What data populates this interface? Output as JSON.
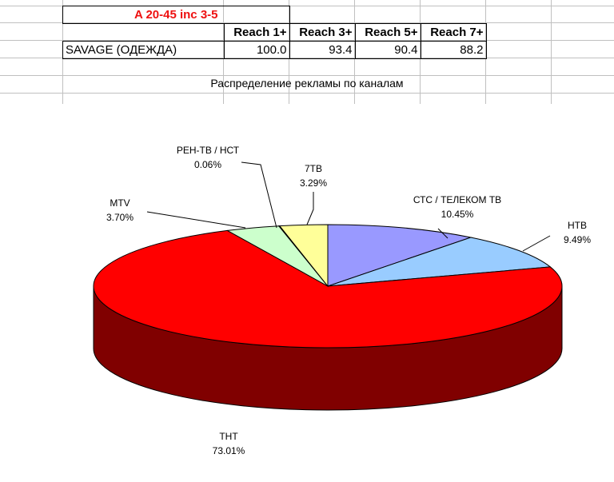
{
  "sheet": {
    "title": "A 20-45 inc 3-5",
    "headers": [
      "Reach 1+",
      "Reach 3+",
      "Reach 5+",
      "Reach 7+"
    ],
    "row_label": "SAVAGE (ОДЕЖДА)",
    "row_values": [
      "100.0",
      "93.4",
      "90.4",
      "88.2"
    ]
  },
  "chart_data": {
    "type": "pie",
    "title": "Распределение рекламы по каналам",
    "three_d": true,
    "slices": [
      {
        "name": "СТС / ТЕЛЕКОМ ТВ",
        "value": 10.45,
        "label": "10.45%",
        "color": "#9999ff"
      },
      {
        "name": "НТВ",
        "value": 9.49,
        "label": "9.49%",
        "color": "#99ccff"
      },
      {
        "name": "ТНТ",
        "value": 73.01,
        "label": "73.01%",
        "color": "#ff0000"
      },
      {
        "name": "MTV",
        "value": 3.7,
        "label": "3.70%",
        "color": "#ccffcc"
      },
      {
        "name": "РЕН-ТВ / НСТ",
        "value": 0.06,
        "label": "0.06%",
        "color": "#ffffcc"
      },
      {
        "name": "7ТВ",
        "value": 3.29,
        "label": "3.29%",
        "color": "#ffff99"
      }
    ]
  }
}
